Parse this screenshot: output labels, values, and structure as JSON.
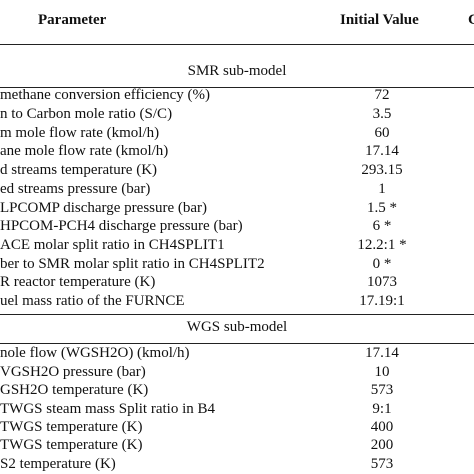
{
  "table": {
    "header": {
      "parameter": "Parameter",
      "initial_value": "Initial Value",
      "cut_column": "C"
    },
    "sections": [
      {
        "title": "SMR sub-model",
        "rows": [
          {
            "parameter": "methane conversion efficiency (%)",
            "value": "72"
          },
          {
            "parameter": "n to Carbon mole ratio (S/C)",
            "value": "3.5"
          },
          {
            "parameter": "m mole flow rate (kmol/h)",
            "value": "60"
          },
          {
            "parameter": "ane mole flow rate (kmol/h)",
            "value": "17.14"
          },
          {
            "parameter": "d streams temperature (K)",
            "value": "293.15"
          },
          {
            "parameter": "ed streams pressure (bar)",
            "value": "1"
          },
          {
            "parameter": "LPCOMP discharge pressure (bar)",
            "value": "1.5 *"
          },
          {
            "parameter": "HPCOM-PCH4 discharge pressure (bar)",
            "value": "6 *"
          },
          {
            "parameter": "ACE molar split ratio in CH4SPLIT1",
            "value": "12.2:1 *"
          },
          {
            "parameter": "ber to SMR molar split ratio in CH4SPLIT2",
            "value": "0 *"
          },
          {
            "parameter": "R reactor temperature (K)",
            "value": "1073"
          },
          {
            "parameter": "uel mass ratio of the FURNCE",
            "value": "17.19:1"
          }
        ]
      },
      {
        "title": "WGS sub-model",
        "rows": [
          {
            "parameter": "nole flow (WGSH2O) (kmol/h)",
            "value": "17.14"
          },
          {
            "parameter": "VGSH2O pressure (bar)",
            "value": "10"
          },
          {
            "parameter": "GSH2O temperature (K)",
            "value": "573"
          },
          {
            "parameter": "TWGS steam mass Split ratio in B4",
            "value": "9:1"
          },
          {
            "parameter": "TWGS temperature (K)",
            "value": "400"
          },
          {
            "parameter": "TWGS temperature (K)",
            "value": "200"
          },
          {
            "parameter": "S2 temperature (K)",
            "value": "573"
          }
        ]
      }
    ]
  }
}
